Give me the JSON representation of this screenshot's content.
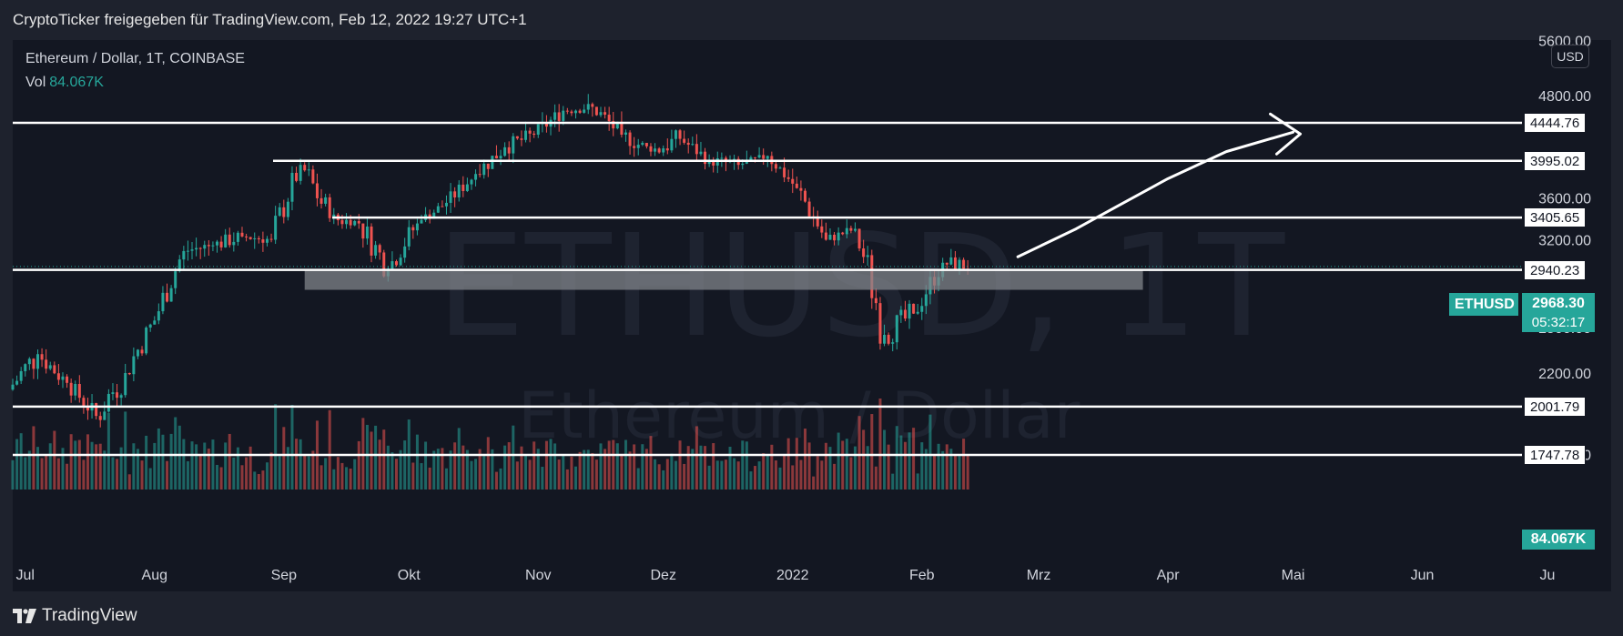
{
  "header": {
    "title": "CryptoTicker freigegeben für TradingView.com, Feb 12, 2022 19:27 UTC+1"
  },
  "legend": {
    "symbol_line": "Ethereum / Dollar, 1T, COINBASE",
    "vol_label": "Vol",
    "vol_value": "84.067K"
  },
  "watermark": {
    "main": "ETHUSD, 1T",
    "sub": "Ethereum / Dollar"
  },
  "currency_button": "USD",
  "footer": {
    "brand": "TradingView"
  },
  "current_price": {
    "symbol": "ETHUSD",
    "price": "2968.30",
    "countdown": "05:32:17",
    "volume": "84.067K"
  },
  "colors": {
    "up": "#26a69a",
    "down": "#ef5350",
    "background": "#131722",
    "grid_text": "#d1d4dc",
    "line": "#ffffff",
    "zone": "#808489"
  },
  "chart_data": {
    "type": "candlestick",
    "symbol": "ETHUSD",
    "interval": "1T",
    "exchange": "COINBASE",
    "x_range": [
      "2021-06-28",
      "2022-07-01"
    ],
    "x_ticks": [
      {
        "label": "Jul",
        "date": "2021-07-01"
      },
      {
        "label": "Aug",
        "date": "2021-08-01"
      },
      {
        "label": "Sep",
        "date": "2021-09-01"
      },
      {
        "label": "Okt",
        "date": "2021-10-01"
      },
      {
        "label": "Nov",
        "date": "2021-11-01"
      },
      {
        "label": "Dez",
        "date": "2021-12-01"
      },
      {
        "label": "2022",
        "date": "2022-01-01"
      },
      {
        "label": "Feb",
        "date": "2022-02-01"
      },
      {
        "label": "Mrz",
        "date": "2022-03-01"
      },
      {
        "label": "Apr",
        "date": "2022-04-01"
      },
      {
        "label": "Mai",
        "date": "2022-05-01"
      },
      {
        "label": "Jun",
        "date": "2022-06-01"
      },
      {
        "label": "Ju",
        "date": "2022-07-01"
      }
    ],
    "y_scale": "log",
    "y_ticks": [
      "5600.00",
      "4800.00",
      "3600.00",
      "3200.00",
      "2500.00",
      "2200.00",
      "1750.00"
    ],
    "y_tick_values": [
      5600,
      4800,
      3600,
      3200,
      2500,
      2200,
      1750
    ],
    "ohlc_weekly": [
      {
        "date": "2021-06-28",
        "open": 2100,
        "high": 2400,
        "low": 1850,
        "close": 2320
      },
      {
        "date": "2021-07-05",
        "open": 2320,
        "high": 2410,
        "low": 2050,
        "close": 2140
      },
      {
        "date": "2021-07-12",
        "open": 2140,
        "high": 2200,
        "low": 1900,
        "close": 1950
      },
      {
        "date": "2021-07-19",
        "open": 1950,
        "high": 2300,
        "low": 1720,
        "close": 2200
      },
      {
        "date": "2021-07-26",
        "open": 2200,
        "high": 2640,
        "low": 2150,
        "close": 2550
      },
      {
        "date": "2021-08-02",
        "open": 2550,
        "high": 3150,
        "low": 2500,
        "close": 3100
      },
      {
        "date": "2021-08-09",
        "open": 3100,
        "high": 3320,
        "low": 2980,
        "close": 3150
      },
      {
        "date": "2021-08-16",
        "open": 3150,
        "high": 3350,
        "low": 2960,
        "close": 3230
      },
      {
        "date": "2021-08-23",
        "open": 3230,
        "high": 3320,
        "low": 3050,
        "close": 3200
      },
      {
        "date": "2021-08-30",
        "open": 3200,
        "high": 4020,
        "low": 3160,
        "close": 3950
      },
      {
        "date": "2021-09-06",
        "open": 3950,
        "high": 3980,
        "low": 3050,
        "close": 3400
      },
      {
        "date": "2021-09-13",
        "open": 3400,
        "high": 3680,
        "low": 3300,
        "close": 3350
      },
      {
        "date": "2021-09-20",
        "open": 3350,
        "high": 3400,
        "low": 2700,
        "close": 2950
      },
      {
        "date": "2021-09-27",
        "open": 2950,
        "high": 3400,
        "low": 2820,
        "close": 3350
      },
      {
        "date": "2021-10-04",
        "open": 3350,
        "high": 3650,
        "low": 3350,
        "close": 3550
      },
      {
        "date": "2021-10-11",
        "open": 3550,
        "high": 3900,
        "low": 3450,
        "close": 3850
      },
      {
        "date": "2021-10-18",
        "open": 3850,
        "high": 4380,
        "low": 3800,
        "close": 4150
      },
      {
        "date": "2021-10-25",
        "open": 4150,
        "high": 4460,
        "low": 3900,
        "close": 4300
      },
      {
        "date": "2021-11-01",
        "open": 4300,
        "high": 4700,
        "low": 4150,
        "close": 4600
      },
      {
        "date": "2021-11-08",
        "open": 4600,
        "high": 4870,
        "low": 4500,
        "close": 4650
      },
      {
        "date": "2021-11-15",
        "open": 4650,
        "high": 4650,
        "low": 4000,
        "close": 4300
      },
      {
        "date": "2021-11-22",
        "open": 4300,
        "high": 4500,
        "low": 3950,
        "close": 4100
      },
      {
        "date": "2021-11-29",
        "open": 4100,
        "high": 4800,
        "low": 4050,
        "close": 4250
      },
      {
        "date": "2021-12-06",
        "open": 4250,
        "high": 4350,
        "low": 3900,
        "close": 4000
      },
      {
        "date": "2021-12-13",
        "open": 4000,
        "high": 4100,
        "low": 3700,
        "close": 3950
      },
      {
        "date": "2021-12-20",
        "open": 3950,
        "high": 4150,
        "low": 3900,
        "close": 4050
      },
      {
        "date": "2021-12-27",
        "open": 4050,
        "high": 4100,
        "low": 3650,
        "close": 3700
      },
      {
        "date": "2022-01-03",
        "open": 3700,
        "high": 3800,
        "low": 3100,
        "close": 3200
      },
      {
        "date": "2022-01-10",
        "open": 3200,
        "high": 3420,
        "low": 3150,
        "close": 3300
      },
      {
        "date": "2022-01-17",
        "open": 3300,
        "high": 3400,
        "low": 2350,
        "close": 2450
      },
      {
        "date": "2022-01-24",
        "open": 2450,
        "high": 2700,
        "low": 2150,
        "close": 2600
      },
      {
        "date": "2022-01-31",
        "open": 2600,
        "high": 3050,
        "low": 2550,
        "close": 3000
      },
      {
        "date": "2022-02-07",
        "open": 3000,
        "high": 3280,
        "low": 2900,
        "close": 2968.3
      }
    ],
    "horizontal_levels": [
      {
        "label": "4444.76",
        "value": 4444.76
      },
      {
        "label": "3995.02",
        "value": 3995.02
      },
      {
        "label": "3405.65",
        "value": 3405.65
      },
      {
        "label": "2940.23",
        "value": 2940.23
      },
      {
        "label": "2001.79",
        "value": 2001.79
      },
      {
        "label": "1747.78",
        "value": 1747.78
      }
    ],
    "support_zone": {
      "from_date": "2021-09-06",
      "to_date": "2022-03-26",
      "low": 2780,
      "high": 2940
    },
    "projection_arrow": {
      "points": [
        [
          "2022-02-24",
          3050
        ],
        [
          "2022-03-10",
          3300
        ],
        [
          "2022-03-20",
          3520
        ],
        [
          "2022-04-01",
          3800
        ],
        [
          "2022-04-15",
          4100
        ],
        [
          "2022-05-01",
          4330
        ]
      ]
    }
  }
}
